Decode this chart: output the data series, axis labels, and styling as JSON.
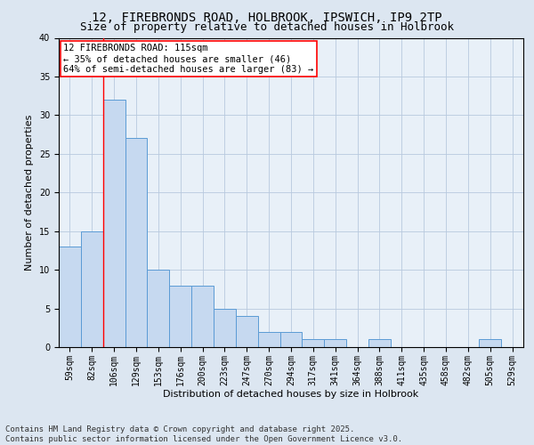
{
  "title": "12, FIREBRONDS ROAD, HOLBROOK, IPSWICH, IP9 2TP",
  "subtitle": "Size of property relative to detached houses in Holbrook",
  "xlabel": "Distribution of detached houses by size in Holbrook",
  "ylabel": "Number of detached properties",
  "categories": [
    "59sqm",
    "82sqm",
    "106sqm",
    "129sqm",
    "153sqm",
    "176sqm",
    "200sqm",
    "223sqm",
    "247sqm",
    "270sqm",
    "294sqm",
    "317sqm",
    "341sqm",
    "364sqm",
    "388sqm",
    "411sqm",
    "435sqm",
    "458sqm",
    "482sqm",
    "505sqm",
    "529sqm"
  ],
  "values": [
    13,
    15,
    32,
    27,
    10,
    8,
    8,
    5,
    4,
    2,
    2,
    1,
    1,
    0,
    1,
    0,
    0,
    0,
    0,
    1,
    0
  ],
  "bar_color": "#c6d9f0",
  "bar_edge_color": "#5b9bd5",
  "grid_color": "#b8c9de",
  "background_color": "#dce6f1",
  "plot_bg_color": "#e8f0f8",
  "red_line_index": 2,
  "annotation_text": "12 FIREBRONDS ROAD: 115sqm\n← 35% of detached houses are smaller (46)\n64% of semi-detached houses are larger (83) →",
  "ylim": [
    0,
    40
  ],
  "yticks": [
    0,
    5,
    10,
    15,
    20,
    25,
    30,
    35,
    40
  ],
  "footer": "Contains HM Land Registry data © Crown copyright and database right 2025.\nContains public sector information licensed under the Open Government Licence v3.0.",
  "title_fontsize": 10,
  "subtitle_fontsize": 9,
  "xlabel_fontsize": 8,
  "ylabel_fontsize": 8,
  "tick_fontsize": 7,
  "annotation_fontsize": 7.5,
  "footer_fontsize": 6.5
}
